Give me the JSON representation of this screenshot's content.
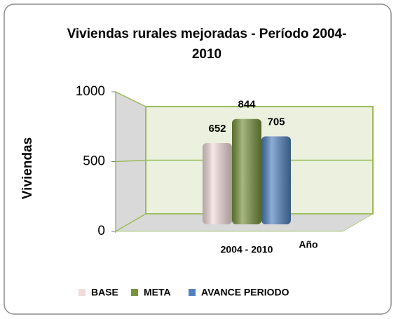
{
  "chart_data": {
    "type": "bar",
    "title": "Viviendas rurales mejoradas - Período 2004-2010",
    "y_label": "Viviendas",
    "x_label": "Año",
    "categories": [
      "2004 - 2010"
    ],
    "series": [
      {
        "name": "BASE",
        "color": "#f2dcdb",
        "values": [
          652
        ]
      },
      {
        "name": "META",
        "color": "#77933c",
        "values": [
          844
        ]
      },
      {
        "name": "AVANCE PERIODO",
        "color": "#4f81bd",
        "values": [
          705
        ]
      }
    ],
    "ylim": [
      0,
      1000
    ],
    "yticks": [
      0,
      500,
      1000
    ],
    "grid": true
  }
}
